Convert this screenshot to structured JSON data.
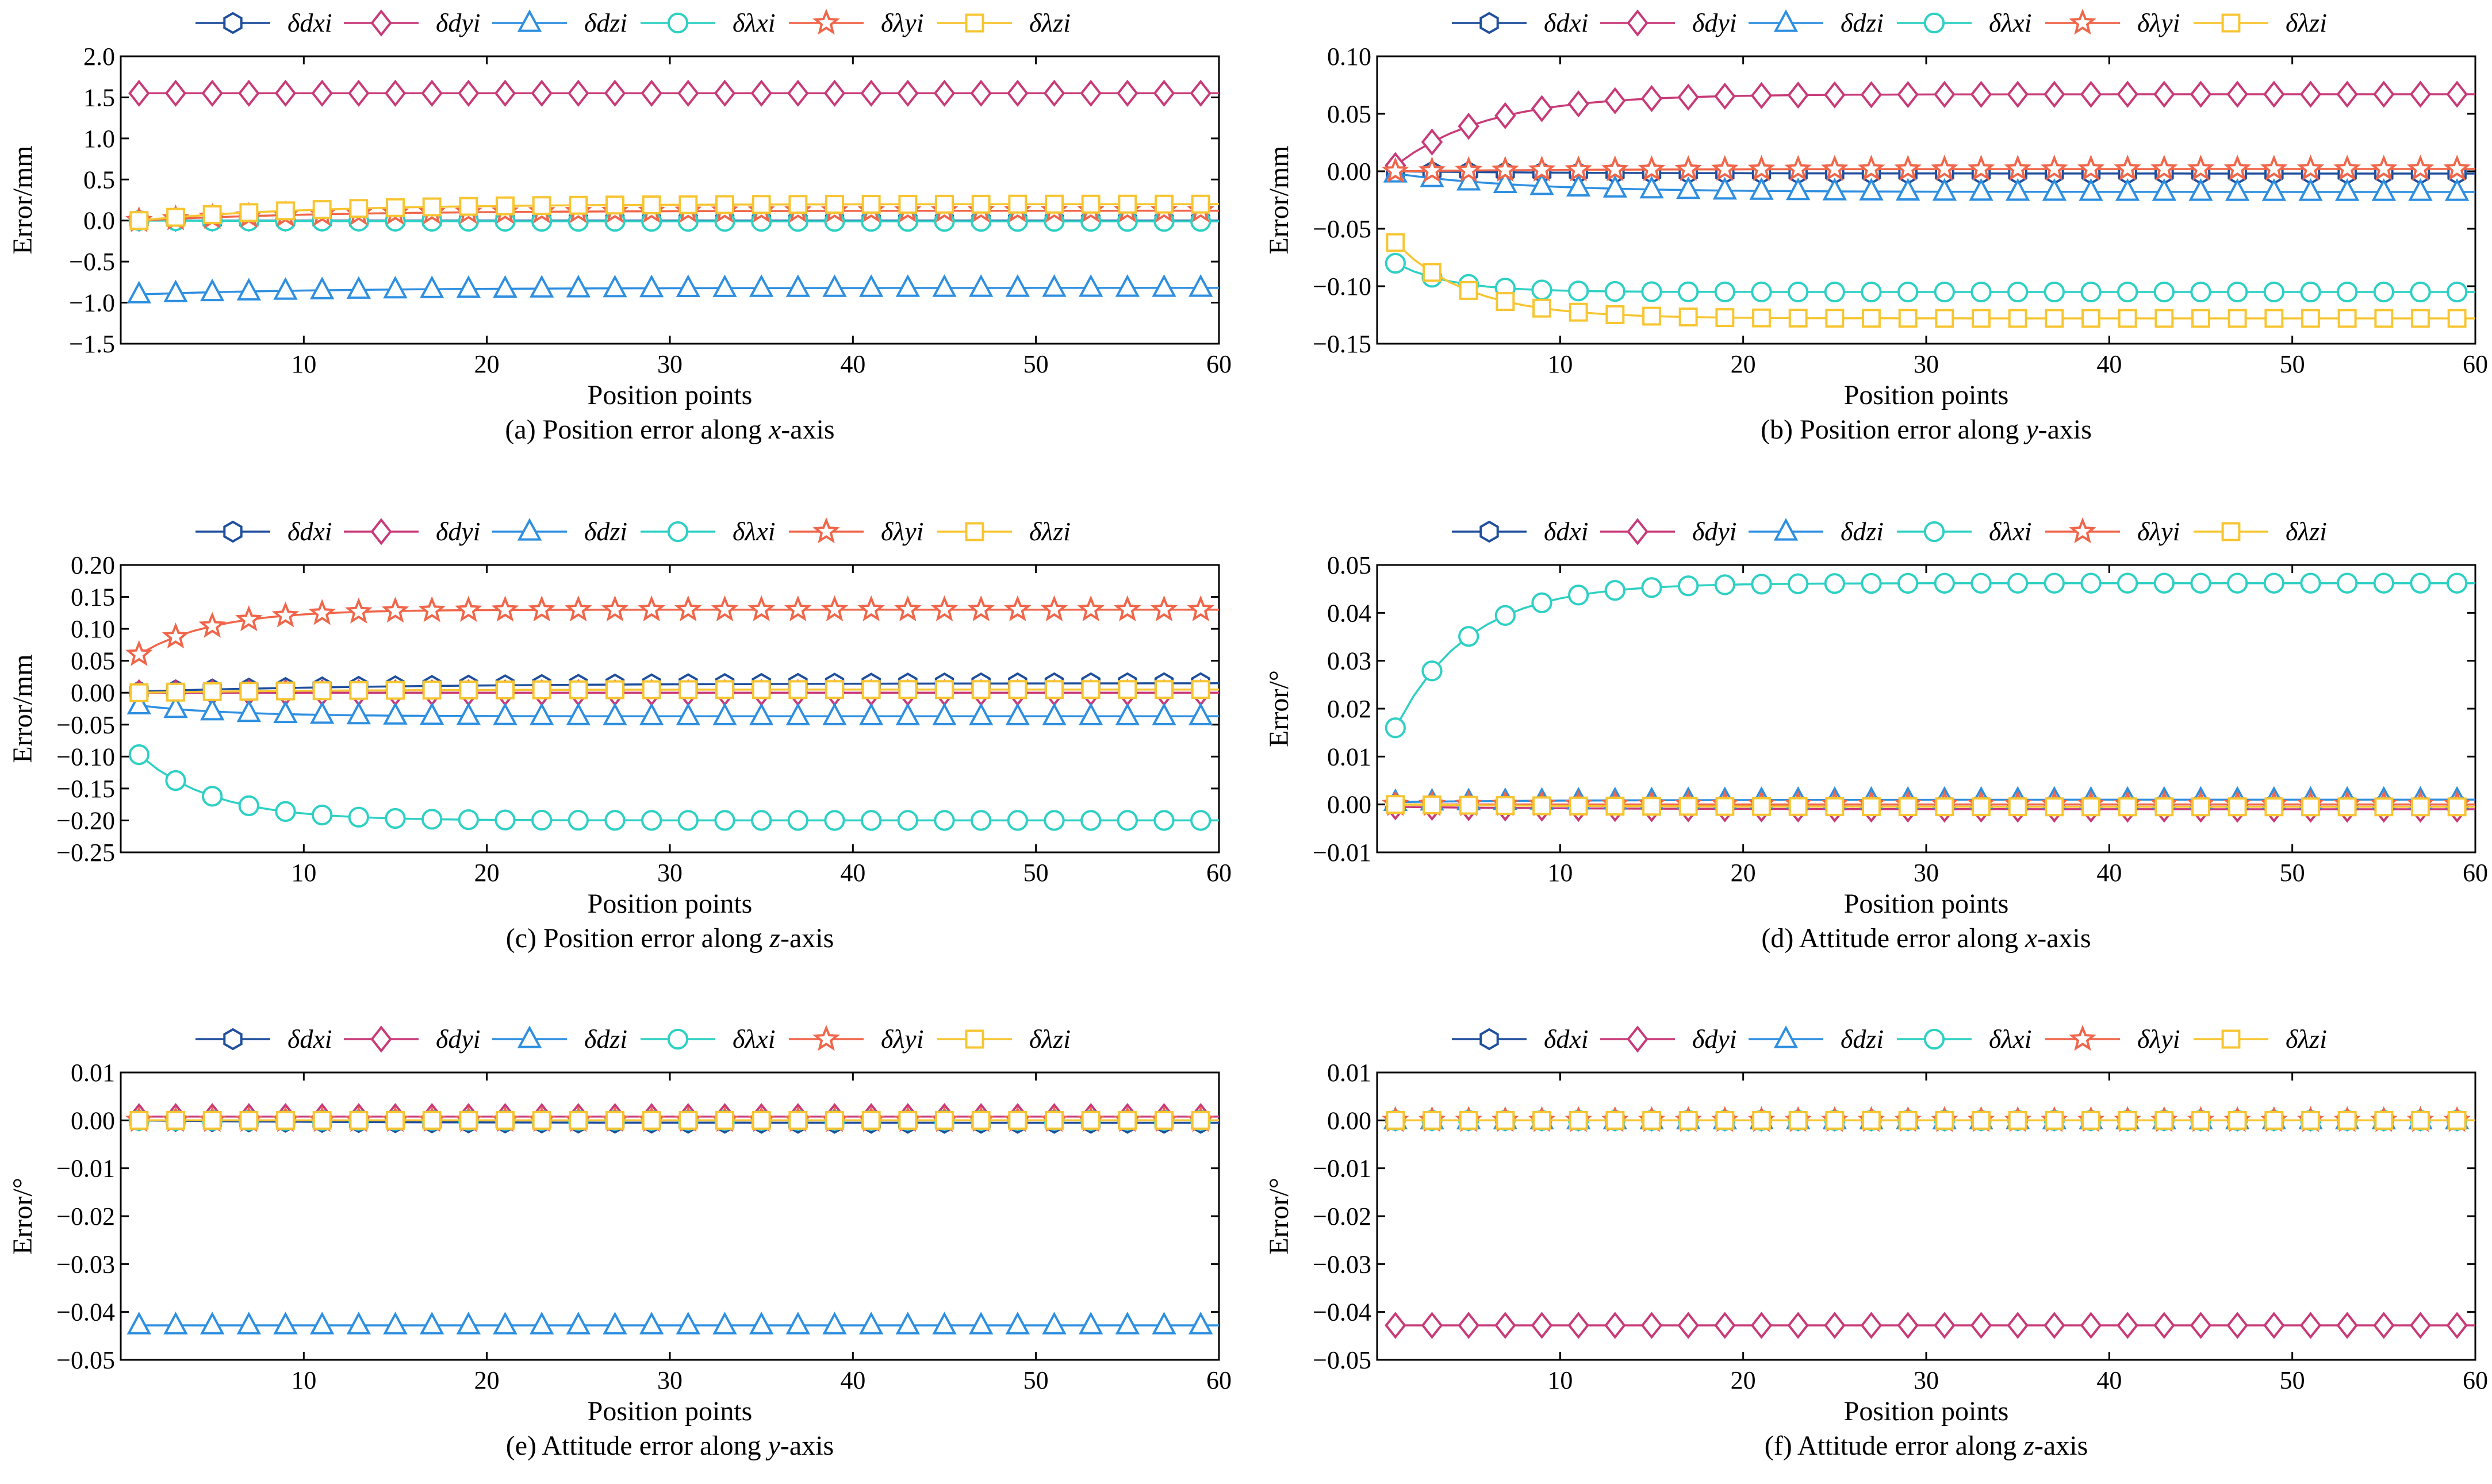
{
  "chart_data": [
    {
      "type": "line",
      "caption_prefix": "(a)  Position error along ",
      "caption_axis": "x",
      "caption_suffix": "-axis",
      "xlabel": "Position points",
      "ylabel": "Error/mm",
      "xlim": [
        0,
        60
      ],
      "ylim": [
        -1.5,
        2.0
      ],
      "xticks": [
        10,
        20,
        30,
        40,
        50,
        60
      ],
      "yticks": [
        -1.5,
        -1.0,
        -0.5,
        0.0,
        0.5,
        1.0,
        1.5,
        2.0
      ],
      "ytick_labels": [
        "−1.5",
        "−1.0",
        "−0.5",
        "0.0",
        "0.5",
        "1.0",
        "1.5",
        "2.0"
      ],
      "series": [
        {
          "name": "δdxi",
          "start": 0.0,
          "end": 0.0,
          "tau": 10
        },
        {
          "name": "δdyi",
          "start": 1.55,
          "end": 1.55,
          "tau": 10
        },
        {
          "name": "δdzi",
          "start": -0.9,
          "end": -0.82,
          "tau": 10
        },
        {
          "name": "δλxi",
          "start": 0.0,
          "end": -0.01,
          "tau": 10
        },
        {
          "name": "δλyi",
          "start": 0.0,
          "end": 0.12,
          "tau": 10
        },
        {
          "name": "δλzi",
          "start": 0.0,
          "end": 0.2,
          "tau": 9
        }
      ]
    },
    {
      "type": "line",
      "caption_prefix": "(b)  Position error along ",
      "caption_axis": "y",
      "caption_suffix": "-axis",
      "xlabel": "Position points",
      "ylabel": "Error/mm",
      "xlim": [
        0,
        60
      ],
      "ylim": [
        -0.15,
        0.1
      ],
      "xticks": [
        10,
        20,
        30,
        40,
        50,
        60
      ],
      "yticks": [
        -0.15,
        -0.1,
        -0.05,
        0.0,
        0.05,
        0.1
      ],
      "ytick_labels": [
        "−0.15",
        "−0.10",
        "−0.05",
        "0.00",
        "0.05",
        "0.10"
      ],
      "series": [
        {
          "name": "δdxi",
          "start": 0.0,
          "end": -0.002,
          "tau": 10
        },
        {
          "name": "δdyi",
          "start": 0.005,
          "end": 0.067,
          "tau": 5
        },
        {
          "name": "δdzi",
          "start": -0.002,
          "end": -0.018,
          "tau": 7
        },
        {
          "name": "δλxi",
          "start": -0.08,
          "end": -0.105,
          "tau": 3
        },
        {
          "name": "δλyi",
          "start": 0.0,
          "end": 0.002,
          "tau": 10
        },
        {
          "name": "δλzi",
          "start": -0.062,
          "end": -0.128,
          "tau": 4
        }
      ]
    },
    {
      "type": "line",
      "caption_prefix": "(c)  Position error along ",
      "caption_axis": "z",
      "caption_suffix": "-axis",
      "xlabel": "Position points",
      "ylabel": "Error/mm",
      "xlim": [
        0,
        60
      ],
      "ylim": [
        -0.25,
        0.2
      ],
      "xticks": [
        10,
        20,
        30,
        40,
        50,
        60
      ],
      "yticks": [
        -0.25,
        -0.2,
        -0.15,
        -0.1,
        -0.05,
        0.0,
        0.05,
        0.1,
        0.15,
        0.2
      ],
      "ytick_labels": [
        "−0.25",
        "−0.20",
        "−0.15",
        "−0.10",
        "−0.05",
        "0.00",
        "0.05",
        "0.10",
        "0.15",
        "0.20"
      ],
      "series": [
        {
          "name": "δdxi",
          "start": 0.002,
          "end": 0.015,
          "tau": 15
        },
        {
          "name": "δdyi",
          "start": 0.0,
          "end": 0.0,
          "tau": 10
        },
        {
          "name": "δdzi",
          "start": -0.02,
          "end": -0.037,
          "tau": 5
        },
        {
          "name": "δλxi",
          "start": -0.097,
          "end": -0.2,
          "tau": 4
        },
        {
          "name": "δλyi",
          "start": 0.06,
          "end": 0.13,
          "tau": 4
        },
        {
          "name": "δλzi",
          "start": 0.0,
          "end": 0.005,
          "tau": 10
        }
      ]
    },
    {
      "type": "line",
      "caption_prefix": "(d)  Attitude error along ",
      "caption_axis": "x",
      "caption_suffix": "-axis",
      "xlabel": "Position points",
      "ylabel": "Error/°",
      "xlim": [
        0,
        60
      ],
      "ylim": [
        -0.01,
        0.05
      ],
      "xticks": [
        10,
        20,
        30,
        40,
        50,
        60
      ],
      "yticks": [
        -0.01,
        0.0,
        0.01,
        0.02,
        0.03,
        0.04,
        0.05
      ],
      "ytick_labels": [
        "−0.01",
        "0.00",
        "0.01",
        "0.02",
        "0.03",
        "0.04",
        "0.05"
      ],
      "series": [
        {
          "name": "δdxi",
          "start": 0.0,
          "end": 0.0,
          "tau": 10
        },
        {
          "name": "δdyi",
          "start": -0.0005,
          "end": -0.001,
          "tau": 10
        },
        {
          "name": "δdzi",
          "start": 0.0005,
          "end": 0.001,
          "tau": 10
        },
        {
          "name": "δλxi",
          "start": 0.016,
          "end": 0.0462,
          "tau": 4
        },
        {
          "name": "δλyi",
          "start": 0.0,
          "end": 0.0,
          "tau": 10
        },
        {
          "name": "δλzi",
          "start": 0.0,
          "end": -0.0005,
          "tau": 10
        }
      ]
    },
    {
      "type": "line",
      "caption_prefix": "(e)  Attitude error along ",
      "caption_axis": "y",
      "caption_suffix": "-axis",
      "xlabel": "Position points",
      "ylabel": "Error/°",
      "xlim": [
        0,
        60
      ],
      "ylim": [
        -0.05,
        0.01
      ],
      "xticks": [
        10,
        20,
        30,
        40,
        50,
        60
      ],
      "yticks": [
        -0.05,
        -0.04,
        -0.03,
        -0.02,
        -0.01,
        0.0,
        0.01
      ],
      "ytick_labels": [
        "−0.05",
        "−0.04",
        "−0.03",
        "−0.02",
        "−0.01",
        "0.00",
        "0.01"
      ],
      "series": [
        {
          "name": "δdxi",
          "start": 0.0,
          "end": -0.0005,
          "tau": 10
        },
        {
          "name": "δdyi",
          "start": 0.0008,
          "end": 0.0008,
          "tau": 10
        },
        {
          "name": "δdzi",
          "start": -0.0428,
          "end": -0.0428,
          "tau": 10
        },
        {
          "name": "δλxi",
          "start": 0.0,
          "end": 0.0,
          "tau": 10
        },
        {
          "name": "δλyi",
          "start": 0.0,
          "end": 0.0,
          "tau": 10
        },
        {
          "name": "δλzi",
          "start": 0.0,
          "end": 0.0,
          "tau": 10
        }
      ]
    },
    {
      "type": "line",
      "caption_prefix": "(f)  Attitude error along ",
      "caption_axis": "z",
      "caption_suffix": "-axis",
      "xlabel": "Position points",
      "ylabel": "Error/°",
      "xlim": [
        0,
        60
      ],
      "ylim": [
        -0.05,
        0.01
      ],
      "xticks": [
        10,
        20,
        30,
        40,
        50,
        60
      ],
      "yticks": [
        -0.05,
        -0.04,
        -0.03,
        -0.02,
        -0.01,
        0.0,
        0.01
      ],
      "ytick_labels": [
        "−0.05",
        "−0.04",
        "−0.03",
        "−0.02",
        "−0.01",
        "0.00",
        "0.01"
      ],
      "series": [
        {
          "name": "δdxi",
          "start": 0.0,
          "end": 0.0,
          "tau": 10
        },
        {
          "name": "δdyi",
          "start": -0.0428,
          "end": -0.0428,
          "tau": 10
        },
        {
          "name": "δdzi",
          "start": 0.0,
          "end": 0.0,
          "tau": 10
        },
        {
          "name": "δλxi",
          "start": 0.0,
          "end": 0.0,
          "tau": 10
        },
        {
          "name": "δλyi",
          "start": 0.0,
          "end": 0.0,
          "tau": 10
        },
        {
          "name": "δλzi",
          "start": 0.0,
          "end": 0.0,
          "tau": 10
        }
      ]
    }
  ],
  "x_points": {
    "first": 1,
    "last": 60,
    "marker_start": 1,
    "marker_step": 2
  },
  "series_style": [
    {
      "name": "δdxi",
      "color": "#1f4e9c",
      "marker": "hexagon"
    },
    {
      "name": "δdyi",
      "color": "#c83a78",
      "marker": "diamond"
    },
    {
      "name": "δdzi",
      "color": "#2e8fe0",
      "marker": "triangle"
    },
    {
      "name": "δλxi",
      "color": "#2ed0c4",
      "marker": "circle"
    },
    {
      "name": "δλyi",
      "color": "#f0664a",
      "marker": "star"
    },
    {
      "name": "δλzi",
      "color": "#f7c531",
      "marker": "square"
    }
  ]
}
